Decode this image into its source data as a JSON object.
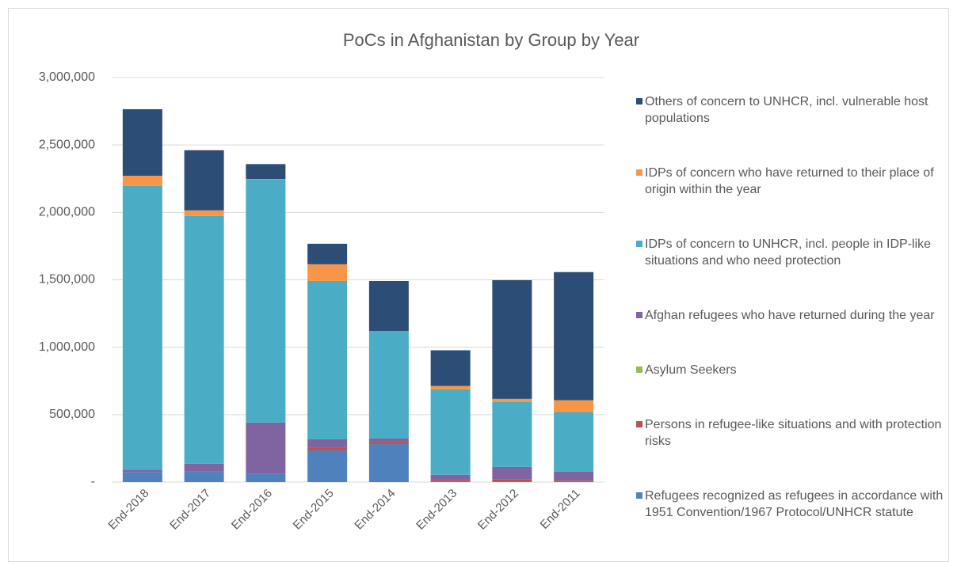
{
  "chart_data": {
    "type": "stacked_bar",
    "title": "PoCs in Afghanistan by Group by Year",
    "categories": [
      "End-2018",
      "End-2017",
      "End-2016",
      "End-2015",
      "End-2014",
      "End-2013",
      "End-2012",
      "End-2011"
    ],
    "series": [
      {
        "name": "Refugees recognized as refugees in accordance with 1951 Convention/1967 Protocol/UNHCR statute",
        "color": "#4f81bd",
        "values": [
          75000,
          76000,
          59000,
          235000,
          282000,
          1000,
          3000,
          3000
        ]
      },
      {
        "name": "Persons in refugee-like situations and with protection risks",
        "color": "#c0504d",
        "values": [
          1000,
          1000,
          1000,
          20000,
          23000,
          13000,
          16000,
          7000
        ]
      },
      {
        "name": "Asylum Seekers",
        "color": "#9bbb59",
        "values": [
          100,
          200,
          200,
          300,
          200,
          300,
          300,
          300
        ]
      },
      {
        "name": "Afghan refugees who have returned during the year",
        "color": "#8064a2",
        "values": [
          16000,
          59000,
          381000,
          62000,
          18000,
          40000,
          93000,
          68000
        ]
      },
      {
        "name": "IDPs of concern to UNHCR, incl. people in IDP-like situations and who need protection",
        "color": "#4bacc6",
        "values": [
          2104000,
          1838000,
          1803000,
          1174000,
          798000,
          634000,
          481000,
          441000
        ]
      },
      {
        "name": "IDPs of concern who have returned to their place of origin within the year",
        "color": "#f79646",
        "values": [
          76000,
          41000,
          3000,
          124000,
          0,
          25000,
          24000,
          88000
        ]
      },
      {
        "name": "Others of concern to UNHCR, incl. vulnerable host populations",
        "color": "#2c4d75",
        "values": [
          493000,
          446000,
          111000,
          152000,
          370000,
          264000,
          880000,
          950000
        ]
      }
    ],
    "ylim": [
      0,
      3000000
    ],
    "yticks": [
      {
        "value": 0,
        "label": "-"
      },
      {
        "value": 500000,
        "label": "500,000"
      },
      {
        "value": 1000000,
        "label": "1,000,000"
      },
      {
        "value": 1500000,
        "label": "1,500,000"
      },
      {
        "value": 2000000,
        "label": "2,000,000"
      },
      {
        "value": 2500000,
        "label": "2,500,000"
      },
      {
        "value": 3000000,
        "label": "3,000,000"
      }
    ],
    "grid": true,
    "legend": "right"
  }
}
